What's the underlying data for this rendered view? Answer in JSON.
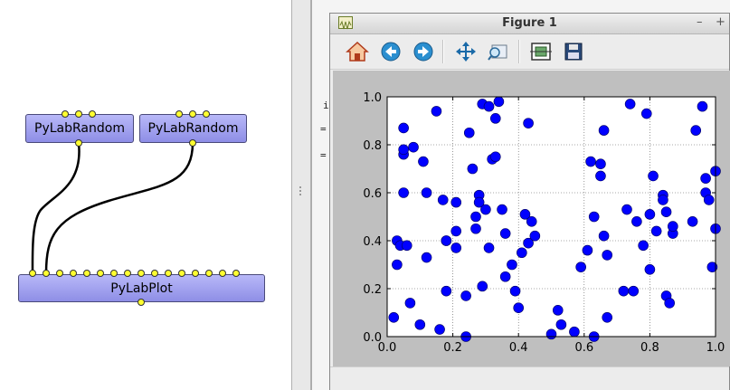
{
  "dataflow": {
    "nodes": [
      {
        "label": "PyLabRandom"
      },
      {
        "label": "PyLabRandom"
      },
      {
        "label": "PyLabPlot"
      }
    ]
  },
  "background_window": {
    "visible_chars": [
      "i",
      "=",
      "="
    ]
  },
  "figure_window": {
    "title": "Figure 1",
    "buttons": [
      "minimize",
      "maximize"
    ],
    "toolbar": [
      "home-icon",
      "back-icon",
      "forward-icon",
      "pan-icon",
      "zoom-icon",
      "configure-subplots-icon",
      "save-icon"
    ]
  },
  "chart_data": {
    "type": "scatter",
    "title": "",
    "xlabel": "",
    "ylabel": "",
    "xlim": [
      0,
      1
    ],
    "ylim": [
      0,
      1
    ],
    "grid": true,
    "marker_color": "#0000ff",
    "xticks": [
      "0.0",
      "0.2",
      "0.4",
      "0.6",
      "0.8",
      "1.0"
    ],
    "yticks": [
      "0.0",
      "0.2",
      "0.4",
      "0.6",
      "0.8",
      "1.0"
    ],
    "x": [
      0.02,
      0.03,
      0.03,
      0.04,
      0.05,
      0.05,
      0.05,
      0.05,
      0.06,
      0.07,
      0.08,
      0.1,
      0.11,
      0.12,
      0.12,
      0.15,
      0.16,
      0.17,
      0.18,
      0.18,
      0.18,
      0.21,
      0.21,
      0.21,
      0.24,
      0.24,
      0.25,
      0.26,
      0.27,
      0.27,
      0.28,
      0.28,
      0.29,
      0.29,
      0.3,
      0.31,
      0.31,
      0.32,
      0.33,
      0.33,
      0.34,
      0.35,
      0.36,
      0.36,
      0.38,
      0.39,
      0.4,
      0.41,
      0.42,
      0.43,
      0.43,
      0.44,
      0.45,
      0.5,
      0.52,
      0.53,
      0.57,
      0.59,
      0.61,
      0.62,
      0.63,
      0.63,
      0.65,
      0.65,
      0.66,
      0.66,
      0.67,
      0.67,
      0.72,
      0.73,
      0.74,
      0.75,
      0.76,
      0.78,
      0.79,
      0.8,
      0.8,
      0.81,
      0.82,
      0.84,
      0.84,
      0.85,
      0.85,
      0.86,
      0.87,
      0.87,
      0.93,
      0.94,
      0.96,
      0.97,
      0.97,
      0.98,
      0.99,
      1.0,
      1.0
    ],
    "y": [
      0.08,
      0.4,
      0.3,
      0.38,
      0.6,
      0.76,
      0.78,
      0.87,
      0.38,
      0.14,
      0.79,
      0.05,
      0.73,
      0.6,
      0.33,
      0.94,
      0.03,
      0.57,
      0.4,
      0.19,
      0.4,
      0.56,
      0.44,
      0.37,
      0.17,
      0.0,
      0.85,
      0.7,
      0.45,
      0.5,
      0.59,
      0.56,
      0.21,
      0.97,
      0.53,
      0.37,
      0.96,
      0.74,
      0.75,
      0.91,
      0.98,
      0.53,
      0.25,
      0.43,
      0.3,
      0.19,
      0.12,
      0.35,
      0.51,
      0.39,
      0.89,
      0.48,
      0.42,
      0.01,
      0.11,
      0.05,
      0.02,
      0.29,
      0.36,
      0.73,
      0.5,
      0.0,
      0.72,
      0.67,
      0.86,
      0.42,
      0.08,
      0.34,
      0.19,
      0.53,
      0.97,
      0.19,
      0.48,
      0.38,
      0.93,
      0.51,
      0.28,
      0.67,
      0.44,
      0.59,
      0.57,
      0.52,
      0.17,
      0.14,
      0.43,
      0.46,
      0.48,
      0.86,
      0.96,
      0.66,
      0.6,
      0.57,
      0.29,
      0.45,
      0.69
    ]
  }
}
